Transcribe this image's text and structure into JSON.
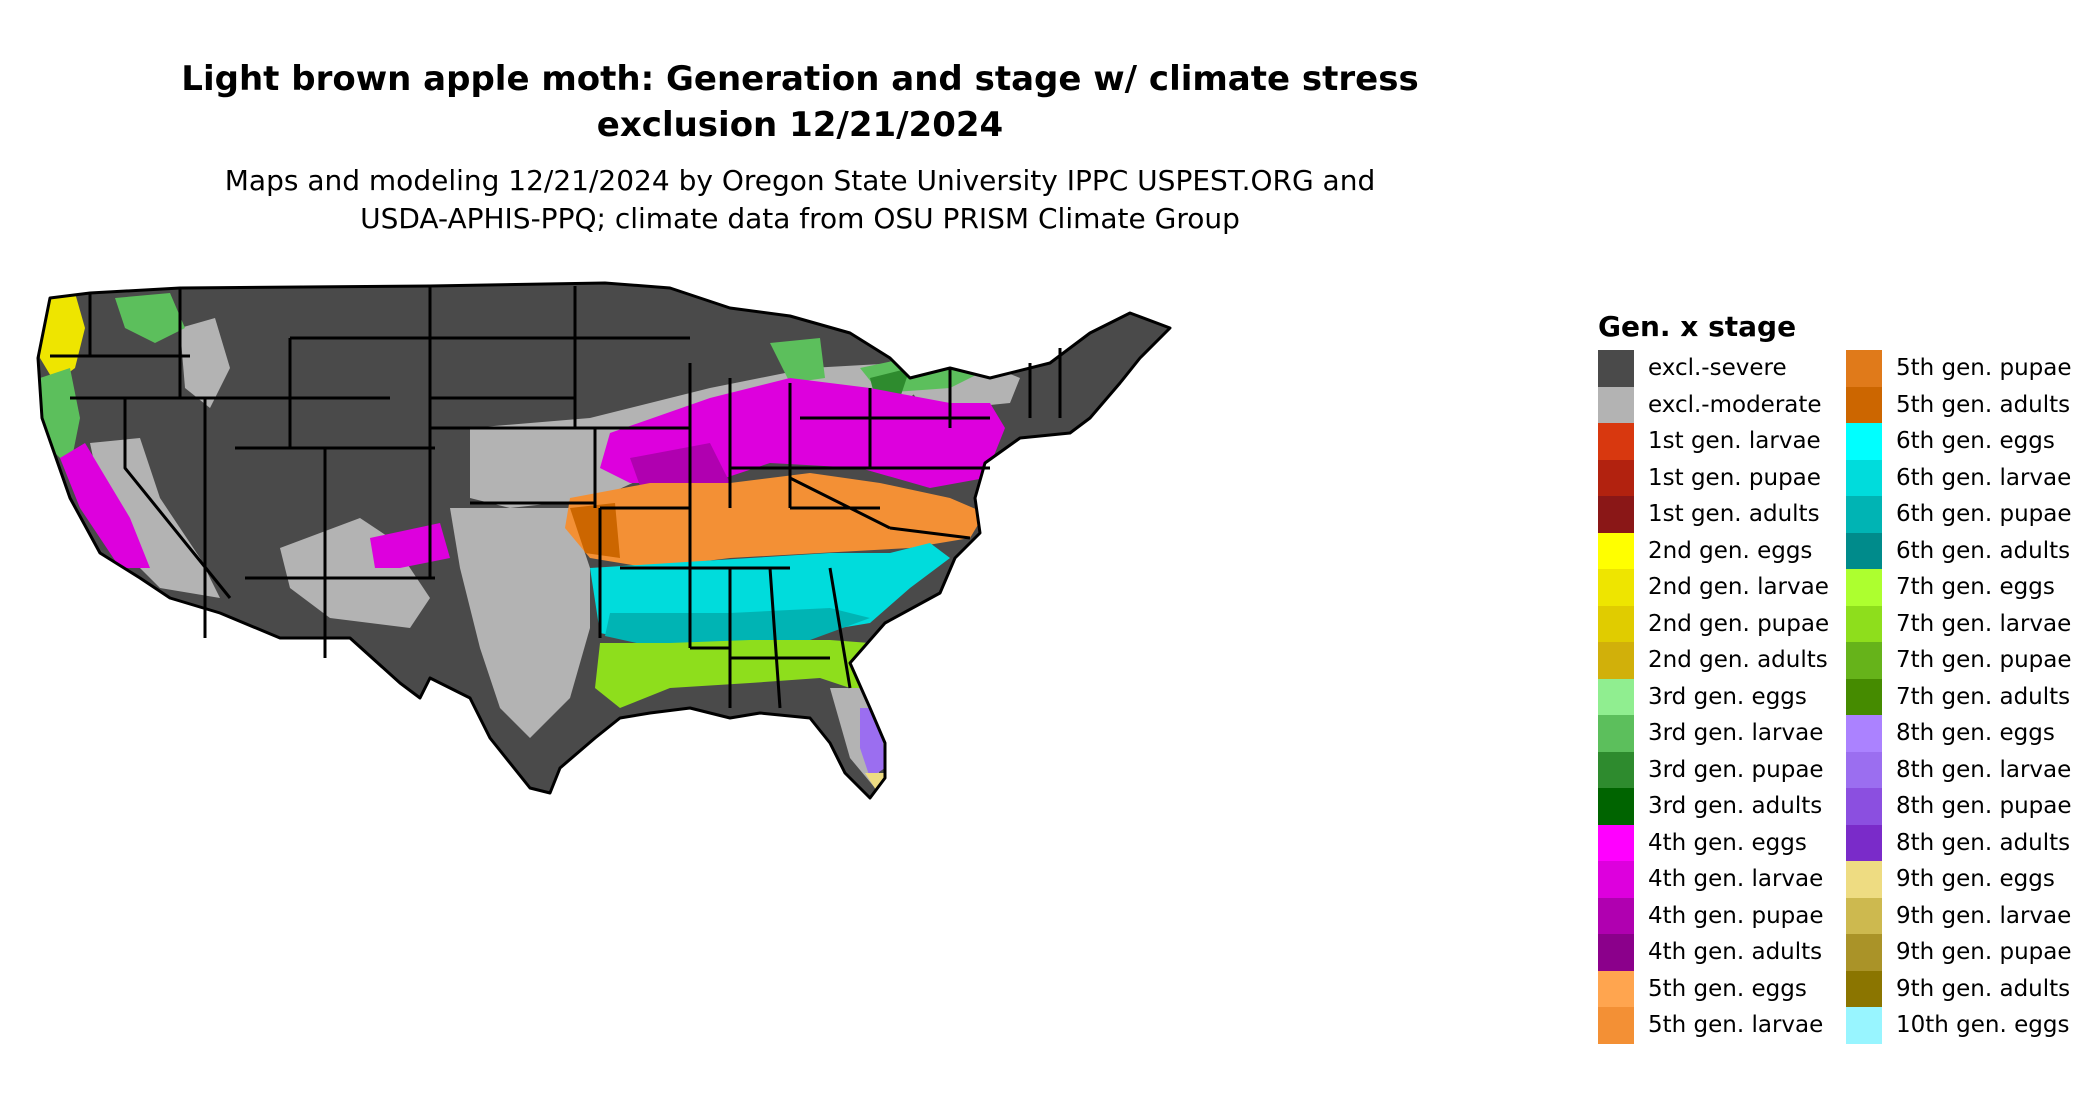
{
  "title_lines": [
    "Light brown apple moth: Generation and stage w/ climate stress",
    "exclusion 12/21/2024"
  ],
  "subtitle_lines": [
    "Maps and modeling 12/21/2024 by Oregon State University IPPC USPEST.ORG and",
    "USDA-APHIS-PPQ; climate data from OSU PRISM Climate Group"
  ],
  "legend": {
    "title": "Gen. x stage",
    "items": [
      {
        "label": "excl.-severe",
        "color": "#4a4a4a"
      },
      {
        "label": "excl.-moderate",
        "color": "#b3b3b3"
      },
      {
        "label": "1st gen. larvae",
        "color": "#d8380f"
      },
      {
        "label": "1st gen. pupae",
        "color": "#b2220f"
      },
      {
        "label": "1st gen. adults",
        "color": "#8a1717"
      },
      {
        "label": "2nd gen. eggs",
        "color": "#ffff00"
      },
      {
        "label": "2nd gen. larvae",
        "color": "#eee500"
      },
      {
        "label": "2nd gen. pupae",
        "color": "#e0cc00"
      },
      {
        "label": "2nd gen. adults",
        "color": "#d1b00a"
      },
      {
        "label": "3rd gen. eggs",
        "color": "#90ee90"
      },
      {
        "label": "3rd gen. larvae",
        "color": "#5cbf5c"
      },
      {
        "label": "3rd gen. pupae",
        "color": "#2e8b2e"
      },
      {
        "label": "3rd gen. adults",
        "color": "#006400"
      },
      {
        "label": "4th gen. eggs",
        "color": "#ff00ff"
      },
      {
        "label": "4th gen. larvae",
        "color": "#dd00dd"
      },
      {
        "label": "4th gen. pupae",
        "color": "#b000b0"
      },
      {
        "label": "4th gen. adults",
        "color": "#8b008b"
      },
      {
        "label": "5th gen. eggs",
        "color": "#ffa54f"
      },
      {
        "label": "5th gen. larvae",
        "color": "#f39035"
      },
      {
        "label": "5th gen. pupae",
        "color": "#e07a1a"
      },
      {
        "label": "5th gen. adults",
        "color": "#cc6600"
      },
      {
        "label": "6th gen. eggs",
        "color": "#00ffff"
      },
      {
        "label": "6th gen. larvae",
        "color": "#00dcdc"
      },
      {
        "label": "6th gen. pupae",
        "color": "#00b4b4"
      },
      {
        "label": "6th gen. adults",
        "color": "#008b8b"
      },
      {
        "label": "7th gen. eggs",
        "color": "#adff2f"
      },
      {
        "label": "7th gen. larvae",
        "color": "#8ede1c"
      },
      {
        "label": "7th gen. pupae",
        "color": "#66b31a"
      },
      {
        "label": "7th gen. adults",
        "color": "#458b00"
      },
      {
        "label": "8th gen. eggs",
        "color": "#ab82ff"
      },
      {
        "label": "8th gen. larvae",
        "color": "#9b6ef0"
      },
      {
        "label": "8th gen. pupae",
        "color": "#8b4fe0"
      },
      {
        "label": "8th gen. adults",
        "color": "#7a2bc9"
      },
      {
        "label": "9th gen. eggs",
        "color": "#eedc82"
      },
      {
        "label": "9th gen. larvae",
        "color": "#cdb94f"
      },
      {
        "label": "9th gen. pupae",
        "color": "#aa9328"
      },
      {
        "label": "9th gen. adults",
        "color": "#8b7500"
      },
      {
        "label": "10th gen. eggs",
        "color": "#98f5ff"
      }
    ]
  },
  "map_colors": {
    "severe": "#4a4a4a",
    "moderate": "#b3b3b3",
    "gen2": "#eee500",
    "gen3": "#5cbf5c",
    "gen3_dark": "#2e8b2e",
    "gen4": "#dd00dd",
    "gen4_dark": "#b000b0",
    "gen5": "#f39035",
    "gen5_dark": "#cc6600",
    "gen6": "#00dcdc",
    "gen6_dark": "#00b4b4",
    "gen7": "#8ede1c",
    "gen8": "#9b6ef0",
    "gen9": "#eedc82",
    "border": "#000000"
  }
}
